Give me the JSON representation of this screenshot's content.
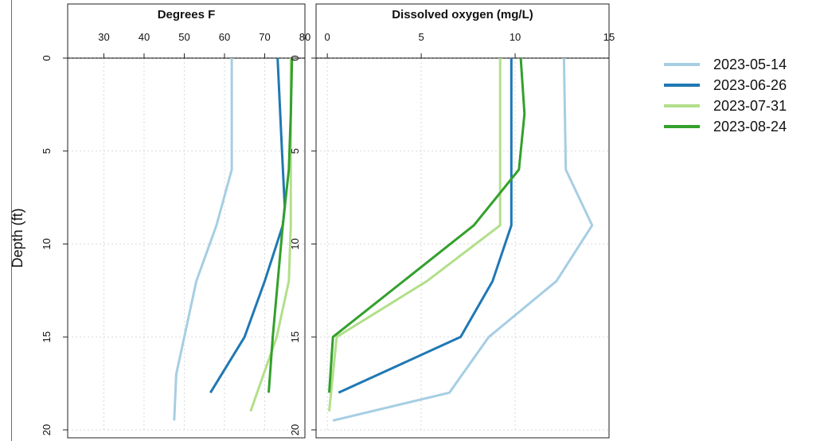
{
  "chart_data": [
    {
      "type": "line",
      "panel": "temperature",
      "title": "Degrees F",
      "xlabel": "Degrees F",
      "ylabel": "Depth (ft)",
      "xlim": [
        21,
        80
      ],
      "ylim": [
        0,
        20
      ],
      "y_reversed": true,
      "x_axis_position": "top",
      "x_ticks": [
        30,
        40,
        50,
        60,
        70,
        80
      ],
      "y_ticks": [
        0,
        5,
        10,
        15,
        20
      ],
      "grid": true,
      "series": [
        {
          "name": "2023-05-14",
          "color": "#a6cee3",
          "points": [
            [
              61.8,
              0
            ],
            [
              61.8,
              6
            ],
            [
              58,
              9
            ],
            [
              53,
              12
            ],
            [
              50,
              15
            ],
            [
              48,
              17
            ],
            [
              47.5,
              19.5
            ]
          ]
        },
        {
          "name": "2023-06-26",
          "color": "#1f78b4",
          "points": [
            [
              73.2,
              0
            ],
            [
              74.3,
              5
            ],
            [
              75,
              8
            ],
            [
              74.5,
              9
            ],
            [
              70,
              12
            ],
            [
              65,
              15
            ],
            [
              56.5,
              18
            ]
          ]
        },
        {
          "name": "2023-07-31",
          "color": "#b2df8a",
          "points": [
            [
              76.5,
              0
            ],
            [
              76.5,
              6
            ],
            [
              76.5,
              9
            ],
            [
              76,
              12
            ],
            [
              73,
              15
            ],
            [
              66.5,
              19
            ]
          ]
        },
        {
          "name": "2023-08-24",
          "color": "#33a02c",
          "points": [
            [
              76.8,
              0
            ],
            [
              76.5,
              3
            ],
            [
              76,
              6
            ],
            [
              74.5,
              9
            ],
            [
              72,
              15
            ],
            [
              71,
              18
            ]
          ]
        }
      ]
    },
    {
      "type": "line",
      "panel": "oxygen",
      "title": "Dissolved oxygen (mg/L)",
      "xlabel": "Dissolved oxygen (mg/L)",
      "xlim": [
        -0.6,
        15
      ],
      "ylim": [
        0,
        20
      ],
      "y_reversed": true,
      "x_axis_position": "top",
      "x_ticks": [
        0,
        5,
        10,
        15
      ],
      "y_ticks": [
        0,
        5,
        10,
        15,
        20
      ],
      "grid": true,
      "series": [
        {
          "name": "2023-05-14",
          "color": "#a6cee3",
          "points": [
            [
              12.6,
              0
            ],
            [
              12.7,
              6
            ],
            [
              14.1,
              9
            ],
            [
              12.2,
              12
            ],
            [
              8.6,
              15
            ],
            [
              6.5,
              18
            ],
            [
              0.3,
              19.5
            ]
          ]
        },
        {
          "name": "2023-06-26",
          "color": "#1f78b4",
          "points": [
            [
              9.8,
              0
            ],
            [
              9.8,
              9
            ],
            [
              8.8,
              12
            ],
            [
              7.1,
              15
            ],
            [
              0.6,
              18
            ]
          ]
        },
        {
          "name": "2023-07-31",
          "color": "#b2df8a",
          "points": [
            [
              9.2,
              0
            ],
            [
              9.2,
              9
            ],
            [
              5.3,
              12
            ],
            [
              0.5,
              15
            ],
            [
              0.1,
              19
            ]
          ]
        },
        {
          "name": "2023-08-24",
          "color": "#33a02c",
          "points": [
            [
              10.3,
              0
            ],
            [
              10.5,
              3
            ],
            [
              10.2,
              6
            ],
            [
              7.8,
              9
            ],
            [
              0.3,
              15
            ],
            [
              0.1,
              18
            ]
          ]
        }
      ]
    }
  ],
  "legend": {
    "placement": "right",
    "items": [
      {
        "label": "2023-05-14",
        "color": "#a6cee3"
      },
      {
        "label": "2023-06-26",
        "color": "#1f78b4"
      },
      {
        "label": "2023-07-31",
        "color": "#b2df8a"
      },
      {
        "label": "2023-08-24",
        "color": "#33a02c"
      }
    ]
  },
  "shared_ylabel": "Depth (ft)"
}
